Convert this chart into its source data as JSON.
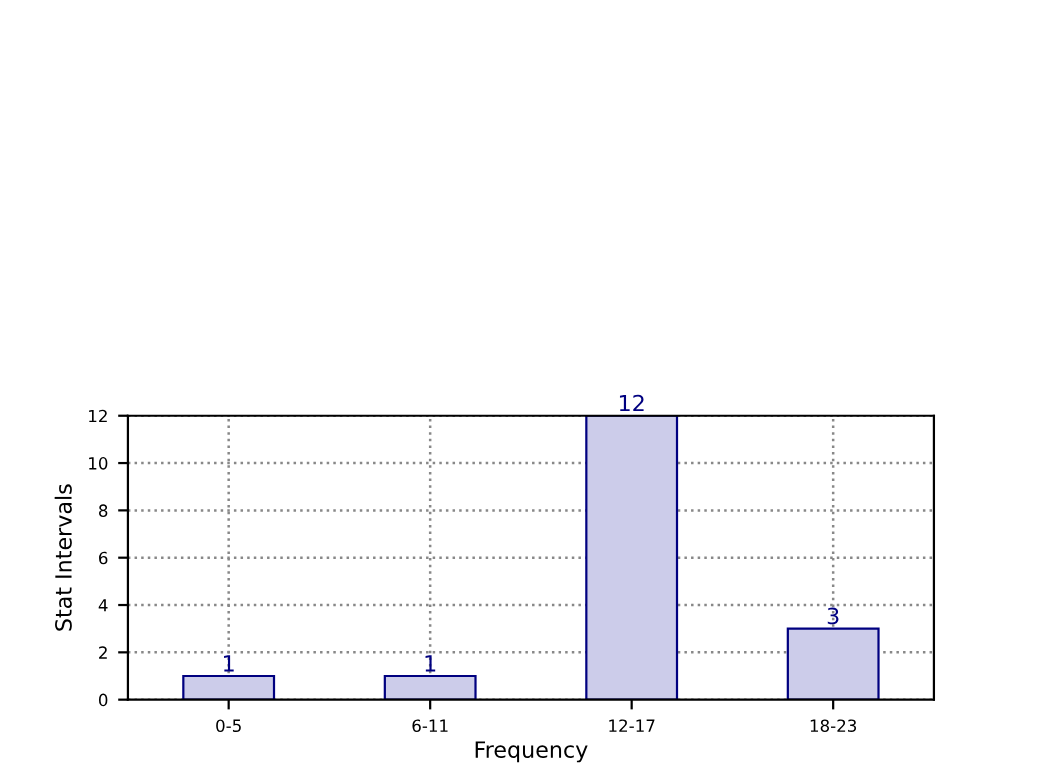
{
  "chart_data": {
    "type": "bar",
    "xlabel": "Frequency",
    "ylabel": "Stat Intervals",
    "categories": [
      "0-5",
      "6-11",
      "12-17",
      "18-23"
    ],
    "values": [
      1,
      1,
      12,
      3
    ],
    "color": "#ccccea",
    "ylim": [
      0,
      12
    ],
    "yticks": [
      0,
      2,
      4,
      6,
      8,
      10,
      12
    ],
    "grid": true,
    "data_labels": true
  }
}
